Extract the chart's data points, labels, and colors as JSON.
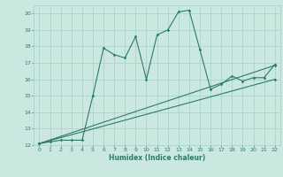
{
  "xlabel": "Humidex (Indice chaleur)",
  "bg_color": "#cbe8e0",
  "grid_color": "#aad4ca",
  "line_color": "#2d7a6a",
  "xlim": [
    -0.5,
    22.5
  ],
  "ylim": [
    12,
    20.5
  ],
  "xticks": [
    0,
    1,
    2,
    3,
    4,
    5,
    6,
    7,
    8,
    9,
    10,
    11,
    12,
    13,
    14,
    15,
    16,
    17,
    18,
    19,
    20,
    21,
    22
  ],
  "yticks": [
    12,
    13,
    14,
    15,
    16,
    17,
    18,
    19,
    20
  ],
  "zigzag_x": [
    0,
    1,
    2,
    3,
    4,
    5,
    6,
    7,
    8,
    9,
    10,
    11,
    12,
    13,
    14,
    15,
    16,
    17,
    18,
    19,
    20,
    21,
    22
  ],
  "zigzag_y": [
    12.1,
    12.2,
    12.3,
    12.3,
    12.3,
    15.0,
    17.9,
    17.5,
    17.3,
    18.6,
    16.0,
    18.7,
    19.0,
    20.1,
    20.2,
    17.8,
    15.4,
    15.7,
    16.2,
    15.9,
    16.1,
    16.1,
    16.9
  ],
  "line1_x": [
    0,
    22
  ],
  "line1_y": [
    12.1,
    16.0
  ],
  "line2_x": [
    0,
    22
  ],
  "line2_y": [
    12.1,
    16.85
  ]
}
